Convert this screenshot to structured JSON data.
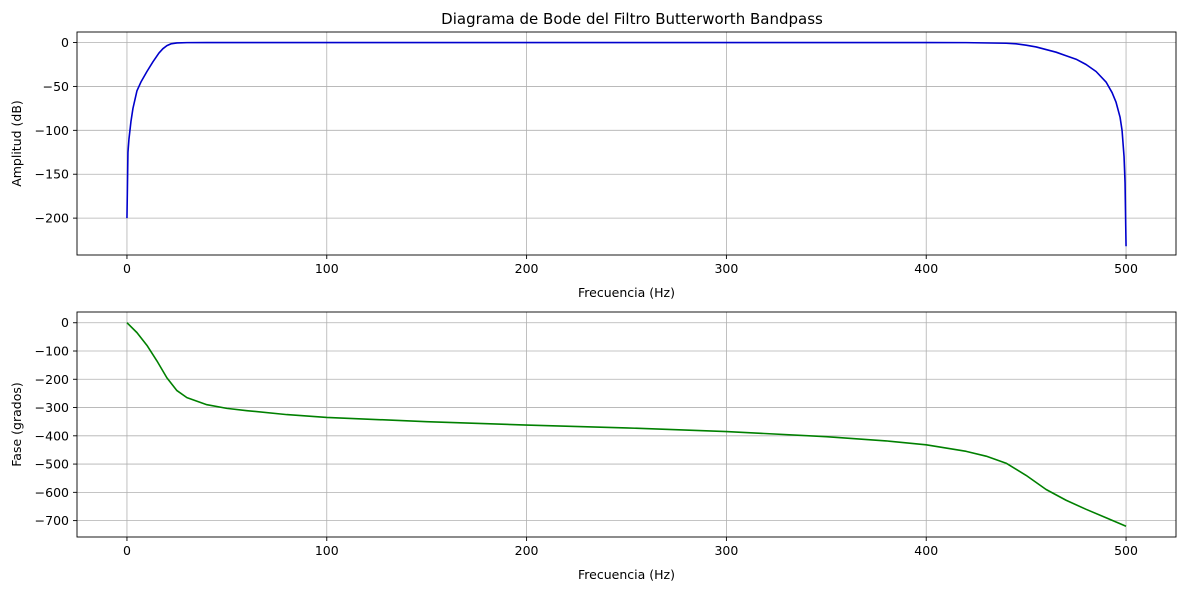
{
  "chart_data": [
    {
      "type": "line",
      "title": "Diagrama de Bode del Filtro Butterworth Bandpass",
      "xlabel": "Frecuencia (Hz)",
      "ylabel": "Amplitud (dB)",
      "xlim": [
        -25,
        525
      ],
      "ylim": [
        -242,
        12
      ],
      "xticks": [
        0,
        100,
        200,
        300,
        400,
        500
      ],
      "yticks": [
        0,
        -50,
        -100,
        -150,
        -200
      ],
      "grid": true,
      "series": [
        {
          "color": "#0000cc",
          "x": [
            0,
            0.5,
            1,
            2,
            3,
            5,
            7,
            10,
            13,
            16,
            18,
            20,
            22,
            25,
            30,
            40,
            60,
            100,
            200,
            300,
            400,
            420,
            440,
            445,
            450,
            455,
            460,
            465,
            470,
            475,
            480,
            485,
            490,
            493,
            495,
            497,
            498,
            499,
            499.5,
            500
          ],
          "values": [
            -200,
            -125,
            -110,
            -90,
            -75,
            -55,
            -45,
            -33,
            -22,
            -12,
            -7,
            -3.5,
            -1.5,
            -0.5,
            -0.1,
            0,
            0,
            0,
            0,
            0,
            0,
            -0.1,
            -0.8,
            -1.5,
            -3,
            -5,
            -8,
            -11,
            -15,
            -19,
            -25,
            -33,
            -45,
            -57,
            -68,
            -85,
            -100,
            -130,
            -160,
            -232
          ]
        }
      ]
    },
    {
      "type": "line",
      "title": "",
      "xlabel": "Frecuencia (Hz)",
      "ylabel": "Fase (grados)",
      "xlim": [
        -25,
        525
      ],
      "ylim": [
        -758,
        38
      ],
      "xticks": [
        0,
        100,
        200,
        300,
        400,
        500
      ],
      "yticks": [
        0,
        -100,
        -200,
        -300,
        -400,
        -500,
        -600,
        -700
      ],
      "grid": true,
      "series": [
        {
          "color": "#008000",
          "x": [
            0,
            5,
            10,
            15,
            20,
            25,
            30,
            40,
            50,
            60,
            80,
            100,
            150,
            200,
            250,
            300,
            350,
            380,
            400,
            420,
            430,
            440,
            450,
            460,
            470,
            480,
            490,
            500
          ],
          "values": [
            0,
            -35,
            -80,
            -135,
            -195,
            -240,
            -265,
            -290,
            -303,
            -311,
            -325,
            -335,
            -350,
            -362,
            -372,
            -385,
            -403,
            -418,
            -432,
            -455,
            -472,
            -497,
            -540,
            -590,
            -628,
            -660,
            -690,
            -720
          ]
        }
      ]
    }
  ]
}
